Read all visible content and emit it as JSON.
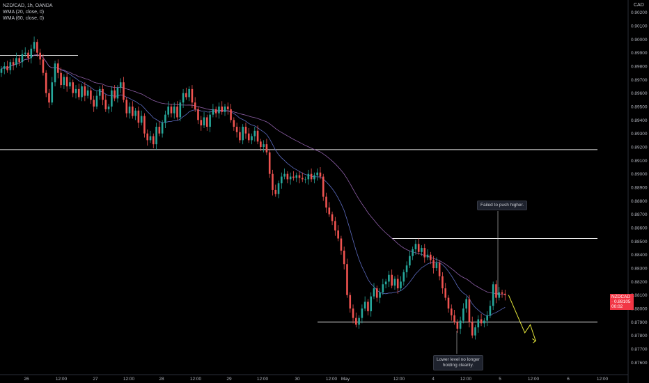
{
  "legend": {
    "symbol_line": "NZD/CAD, 1h, OANDA",
    "ma1": "WMA (20, close, 0)",
    "ma2": "WMA (60, close, 0)"
  },
  "currency_label": "CAD",
  "last_price": {
    "symbol": "NZDCAD",
    "value": "0.88105",
    "countdown": "00:02"
  },
  "annotations": {
    "resistance_note": "Failed to push higher.",
    "support_note": [
      "Lower level no longer",
      "holding cleanly."
    ]
  },
  "colors": {
    "up": "#26a69a",
    "down": "#ef5350",
    "wma20": "#5c6bc0",
    "wma60": "#8e5fa8",
    "level": "#e8e8e8",
    "projection": "#e6e83a"
  },
  "chart_data": {
    "type": "candlestick",
    "title": "NZD/CAD, 1h, OANDA",
    "x_tick_labels": [
      "26",
      "12:00",
      "27",
      "12:00",
      "28",
      "12:00",
      "29",
      "12:00",
      "30",
      "12:00",
      "May",
      "12:00",
      "4",
      "12:00",
      "5",
      "12:00",
      "6",
      "12:00"
    ],
    "y_tick_labels": [
      "0.90200",
      "0.90100",
      "0.90000",
      "0.89900",
      "0.89800",
      "0.89700",
      "0.89600",
      "0.89500",
      "0.89400",
      "0.89300",
      "0.89200",
      "0.89100",
      "0.89000",
      "0.88900",
      "0.88800",
      "0.88700",
      "0.88600",
      "0.88500",
      "0.88400",
      "0.88300",
      "0.88200",
      "0.88100",
      "0.88000",
      "0.87900",
      "0.87800",
      "0.87700",
      "0.87600"
    ],
    "ylim": [
      0.8754,
      0.9025
    ],
    "grid": false,
    "horizontal_levels": [
      {
        "price": 0.8988,
        "x_range": [
          0,
          112
        ]
      },
      {
        "price": 0.8918,
        "x_range": [
          0,
          858
        ]
      },
      {
        "price": 0.8852,
        "x_range": [
          563,
          858
        ]
      },
      {
        "price": 0.879,
        "x_range": [
          456,
          858
        ]
      }
    ],
    "closes": [
      0.8978,
      0.898,
      0.8977,
      0.8983,
      0.8981,
      0.8986,
      0.8983,
      0.8989,
      0.899,
      0.8986,
      0.8993,
      0.8998,
      0.899,
      0.8985,
      0.8975,
      0.896,
      0.8953,
      0.8968,
      0.8982,
      0.8975,
      0.8966,
      0.8972,
      0.8965,
      0.8968,
      0.896,
      0.8963,
      0.8957,
      0.8965,
      0.8958,
      0.8962,
      0.8955,
      0.895,
      0.8958,
      0.8963,
      0.8955,
      0.8948,
      0.895,
      0.8962,
      0.8956,
      0.8964,
      0.8968,
      0.8955,
      0.8945,
      0.895,
      0.8943,
      0.8947,
      0.8938,
      0.8943,
      0.893,
      0.8925,
      0.8928,
      0.8922,
      0.8935,
      0.893,
      0.8938,
      0.8944,
      0.895,
      0.8945,
      0.895,
      0.8942,
      0.8953,
      0.896,
      0.8957,
      0.8963,
      0.8953,
      0.8948,
      0.894,
      0.8936,
      0.8942,
      0.8935,
      0.8944,
      0.8948,
      0.8945,
      0.895,
      0.8946,
      0.895,
      0.8948,
      0.894,
      0.8935,
      0.8931,
      0.8925,
      0.8935,
      0.893,
      0.8925,
      0.8928,
      0.8932,
      0.8924,
      0.892,
      0.8922,
      0.8916,
      0.89,
      0.8888,
      0.8885,
      0.8893,
      0.8898,
      0.89,
      0.8896,
      0.8898,
      0.8897,
      0.8899,
      0.8897,
      0.8896,
      0.8896,
      0.89,
      0.8896,
      0.8899,
      0.8901,
      0.8898,
      0.8883,
      0.8875,
      0.887,
      0.8865,
      0.8858,
      0.8852,
      0.8843,
      0.8833,
      0.881,
      0.88,
      0.8793,
      0.8788,
      0.8793,
      0.88,
      0.8805,
      0.8798,
      0.8809,
      0.8815,
      0.8808,
      0.8812,
      0.8818,
      0.882,
      0.8825,
      0.8817,
      0.8822,
      0.8815,
      0.882,
      0.8827,
      0.8832,
      0.8839,
      0.8844,
      0.8848,
      0.8842,
      0.8845,
      0.8838,
      0.884,
      0.8836,
      0.883,
      0.8834,
      0.8824,
      0.8815,
      0.8808,
      0.88,
      0.8795,
      0.879,
      0.8785,
      0.8791,
      0.88,
      0.8807,
      0.879,
      0.878,
      0.8786,
      0.8792,
      0.8789,
      0.8791,
      0.8795,
      0.8802,
      0.8818,
      0.8808,
      0.8812,
      0.8811,
      0.881
    ],
    "wma20_last": 0.8803,
    "wma60_last": 0.8796,
    "projection_path": [
      [
        0.881,
        0
      ],
      [
        0.8782,
        9
      ],
      [
        0.8788,
        12
      ],
      [
        0.8776,
        15
      ]
    ]
  }
}
